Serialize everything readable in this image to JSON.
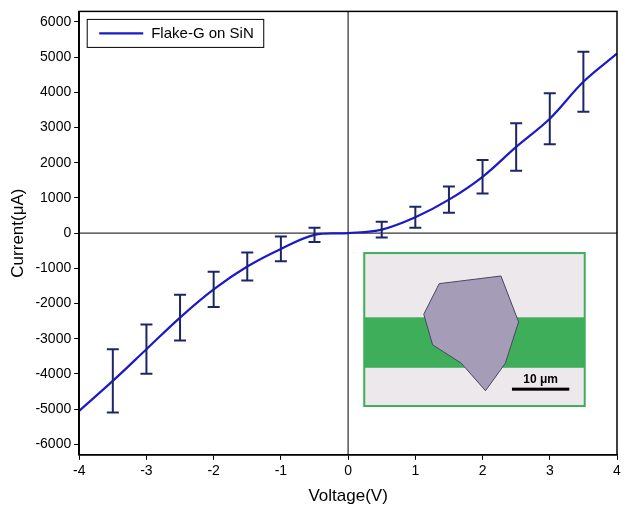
{
  "chart_data": {
    "type": "line",
    "x_label": "Voltage(V)",
    "y_label": "Current(μA)",
    "x": [
      -4,
      -3.5,
      -3,
      -2.5,
      -2,
      -1.5,
      -1,
      -0.5,
      0,
      0.5,
      1,
      1.5,
      2,
      2.5,
      3,
      3.5,
      4
    ],
    "series": [
      {
        "name": "Flake-G on SiN",
        "color": "#1a1ac8",
        "marker": "none",
        "line_style": "solid",
        "values": [
          -5050,
          -4200,
          -3300,
          -2400,
          -1600,
          -950,
          -450,
          -50,
          0,
          100,
          450,
          950,
          1600,
          2450,
          3250,
          4300,
          5100
        ],
        "errors": [
          null,
          900,
          700,
          650,
          500,
          400,
          350,
          200,
          null,
          225,
          300,
          375,
          475,
          675,
          725,
          850,
          null
        ]
      }
    ],
    "xlim": [
      -4,
      4
    ],
    "xticks": [
      -4,
      -3,
      -2,
      -1,
      0,
      1,
      2,
      3,
      4
    ],
    "ylim": [
      -6300,
      6300
    ],
    "yticks": [
      -6000,
      -5000,
      -4000,
      -3000,
      -2000,
      -1000,
      0,
      1000,
      2000,
      3000,
      4000,
      5000,
      6000
    ],
    "grid": false,
    "legend": "upper left",
    "annotations": [
      "10 μm"
    ]
  }
}
